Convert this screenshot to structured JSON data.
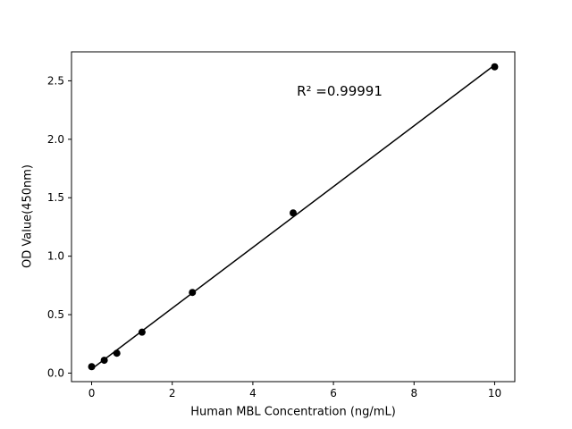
{
  "figure": {
    "background": "#ffffff",
    "axes_color": "#000000"
  },
  "chart_data": {
    "type": "scatter",
    "x": [
      0,
      0.3125,
      0.625,
      1.25,
      2.5,
      5,
      10
    ],
    "y": [
      0.055,
      0.11,
      0.17,
      0.35,
      0.69,
      1.37,
      2.62
    ],
    "fit": "linear",
    "annotation": "R² =0.99991",
    "title": "",
    "xlabel": "Human MBL Concentration (ng/mL)",
    "ylabel": "OD Value(450nm)",
    "xlim": [
      -0.5,
      10.5
    ],
    "ylim": [
      -0.073,
      2.748
    ],
    "xticks": {
      "values": [
        0,
        2,
        4,
        6,
        8,
        10
      ],
      "labels": [
        "0",
        "2",
        "4",
        "6",
        "8",
        "10"
      ]
    },
    "yticks": {
      "values": [
        0,
        0.5,
        1,
        1.5,
        2,
        2.5
      ],
      "labels": [
        "0.0",
        "0.5",
        "1.0",
        "1.5",
        "2.0",
        "2.5"
      ]
    },
    "grid": false,
    "legend": null,
    "marker_color": "#000000",
    "line_color": "#000000",
    "marker_size_px": 4
  }
}
